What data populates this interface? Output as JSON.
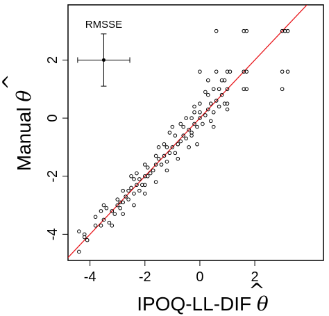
{
  "chart_data": {
    "type": "scatter",
    "xlabel": "IPOQ-LL-DIF",
    "ylabel": "Manual",
    "axis_symbol": "θ",
    "axis_symbol_hat": "^",
    "xlim": [
      -4.8,
      4.5
    ],
    "ylim": [
      -4.9,
      3.9
    ],
    "x_ticks": [
      -4,
      -2,
      0,
      2
    ],
    "y_ticks": [
      -4,
      -2,
      0,
      2
    ],
    "x_tick_labels": [
      "-4",
      "-2",
      "0",
      "2"
    ],
    "y_tick_labels": [
      "-4",
      "-2",
      "0",
      "2"
    ],
    "grid": false,
    "reference_line": {
      "slope": 1,
      "intercept": 0,
      "color": "#e8161b"
    },
    "rmsse_annotation": {
      "label": "RMSSE",
      "center": [
        -3.5,
        2.0
      ],
      "x_halfwidth": 0.95,
      "y_halfwidth": 0.9
    },
    "points": [
      [
        -4.4,
        -4.6
      ],
      [
        -4.4,
        -3.9
      ],
      [
        -4.2,
        -4.0
      ],
      [
        -4.1,
        -4.2
      ],
      [
        -4.2,
        -4.1
      ],
      [
        -3.8,
        -3.7
      ],
      [
        -3.6,
        -3.7
      ],
      [
        -3.5,
        -3.5
      ],
      [
        -3.8,
        -3.4
      ],
      [
        -3.6,
        -3.2
      ],
      [
        -3.5,
        -3.0
      ],
      [
        -3.4,
        -3.1
      ],
      [
        -3.2,
        -3.2
      ],
      [
        -3.3,
        -3.6
      ],
      [
        -3.1,
        -3.3
      ],
      [
        -3.0,
        -3.0
      ],
      [
        -2.9,
        -2.9
      ],
      [
        -3.0,
        -2.8
      ],
      [
        -2.8,
        -2.9
      ],
      [
        -2.7,
        -2.7
      ],
      [
        -2.8,
        -2.5
      ],
      [
        -2.6,
        -2.5
      ],
      [
        -2.9,
        -3.1
      ],
      [
        -2.6,
        -2.8
      ],
      [
        -2.5,
        -2.4
      ],
      [
        -2.4,
        -2.6
      ],
      [
        -2.3,
        -2.3
      ],
      [
        -2.2,
        -2.1
      ],
      [
        -2.1,
        -2.3
      ],
      [
        -2.0,
        -2.0
      ],
      [
        -2.3,
        -1.9
      ],
      [
        -2.4,
        -2.1
      ],
      [
        -2.2,
        -2.5
      ],
      [
        -2.0,
        -2.3
      ],
      [
        -1.9,
        -2.0
      ],
      [
        -1.8,
        -1.9
      ],
      [
        -1.9,
        -1.7
      ],
      [
        -1.7,
        -1.8
      ],
      [
        -1.6,
        -1.6
      ],
      [
        -1.5,
        -1.4
      ],
      [
        -1.4,
        -1.6
      ],
      [
        -1.3,
        -1.3
      ],
      [
        -1.2,
        -1.5
      ],
      [
        -1.1,
        -1.2
      ],
      [
        -1.0,
        -1.0
      ],
      [
        -1.2,
        -1.0
      ],
      [
        -0.9,
        -1.2
      ],
      [
        -0.8,
        -0.9
      ],
      [
        -0.7,
        -0.8
      ],
      [
        -0.6,
        -0.6
      ],
      [
        -0.5,
        -0.7
      ],
      [
        -0.4,
        -0.4
      ],
      [
        -0.3,
        -0.5
      ],
      [
        -0.2,
        -0.2
      ],
      [
        -0.1,
        -0.3
      ],
      [
        0.0,
        0.0
      ],
      [
        -0.2,
        0.2
      ],
      [
        0.1,
        -0.2
      ],
      [
        0.2,
        0.1
      ],
      [
        0.3,
        0.3
      ],
      [
        0.4,
        0.5
      ],
      [
        0.5,
        0.2
      ],
      [
        0.6,
        0.6
      ],
      [
        0.7,
        0.4
      ],
      [
        0.8,
        0.8
      ],
      [
        0.9,
        0.5
      ],
      [
        1.0,
        1.0
      ],
      [
        0.5,
        1.0
      ],
      [
        0.3,
        1.3
      ],
      [
        0.0,
        1.6
      ],
      [
        0.6,
        1.6
      ],
      [
        1.0,
        1.6
      ],
      [
        1.1,
        1.6
      ],
      [
        0.8,
        1.3
      ],
      [
        0.6,
        3.0
      ],
      [
        1.6,
        3.0
      ],
      [
        1.7,
        3.0
      ],
      [
        1.6,
        1.6
      ],
      [
        1.7,
        1.6
      ],
      [
        1.7,
        1.0
      ],
      [
        1.6,
        1.0
      ],
      [
        3.0,
        3.0
      ],
      [
        3.1,
        3.0
      ],
      [
        3.2,
        3.0
      ],
      [
        3.0,
        1.6
      ],
      [
        3.2,
        1.6
      ],
      [
        3.0,
        1.0
      ],
      [
        0.0,
        0.5
      ],
      [
        0.0,
        0.2
      ],
      [
        -0.3,
        0.0
      ],
      [
        -0.6,
        -0.3
      ],
      [
        -0.9,
        -0.6
      ],
      [
        -1.3,
        -0.9
      ],
      [
        -1.6,
        -1.3
      ],
      [
        -2.0,
        -1.6
      ],
      [
        -2.5,
        -2.0
      ],
      [
        -1.0,
        -0.3
      ],
      [
        -0.5,
        0.0
      ],
      [
        0.2,
        0.9
      ],
      [
        1.0,
        0.5
      ],
      [
        0.4,
        -0.1
      ],
      [
        -0.1,
        -0.9
      ],
      [
        -0.4,
        -1.0
      ],
      [
        -0.8,
        -1.4
      ],
      [
        -1.2,
        -1.8
      ],
      [
        -1.6,
        -2.2
      ],
      [
        -2.0,
        -2.6
      ],
      [
        -2.4,
        -3.0
      ],
      [
        -2.8,
        -3.3
      ],
      [
        -3.2,
        -3.7
      ],
      [
        -1.5,
        -1.0
      ],
      [
        -1.1,
        -0.5
      ],
      [
        -0.7,
        -0.2
      ],
      [
        -0.2,
        0.4
      ],
      [
        0.3,
        0.8
      ],
      [
        0.7,
        1.0
      ],
      [
        0.9,
        1.3
      ],
      [
        1.0,
        0.3
      ],
      [
        0.5,
        -0.3
      ],
      [
        -0.3,
        -0.6
      ]
    ]
  }
}
